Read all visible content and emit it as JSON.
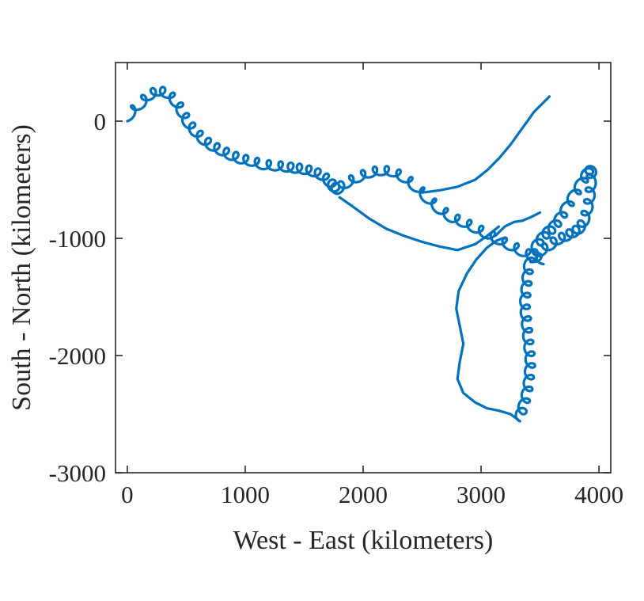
{
  "chart_data": {
    "type": "line",
    "xlabel": "West - East (kilometers)",
    "ylabel": "South - North (kilometers)",
    "xlim": [
      -100,
      4100
    ],
    "ylim": [
      -3000,
      500
    ],
    "xticks": [
      0,
      1000,
      2000,
      3000,
      4000
    ],
    "yticks": [
      0,
      -1000,
      -2000,
      -3000
    ],
    "xtick_labels": [
      "0",
      "1000",
      "2000",
      "3000",
      "4000"
    ],
    "ytick_labels": [
      "0",
      "-1000",
      "-2000",
      "-3000"
    ],
    "grid": false,
    "line_color": "#0072BD",
    "axis_color": "#262626",
    "series": [
      {
        "x": [
          0,
          100,
          180,
          260,
          340,
          420,
          470,
          520,
          580,
          650,
          720,
          800,
          880,
          960,
          1050,
          1150,
          1250,
          1350,
          1420,
          1500,
          1580,
          1650,
          1720,
          1750,
          1780,
          1850,
          1950,
          2050,
          2150,
          2250,
          2350,
          2450,
          2550,
          2650,
          2750,
          2850,
          2950,
          3050,
          3150,
          3250,
          3350,
          3450,
          3530
        ],
        "y": [
          0,
          100,
          180,
          220,
          200,
          120,
          30,
          -60,
          -130,
          -200,
          -250,
          -290,
          -330,
          -360,
          -380,
          -410,
          -420,
          -430,
          -440,
          -450,
          -470,
          -500,
          -560,
          -600,
          -620,
          -570,
          -520,
          -480,
          -460,
          -470,
          -520,
          -600,
          -700,
          -790,
          -860,
          -900,
          -950,
          -1000,
          -1050,
          -1100,
          -1150,
          -1200,
          -1220
        ],
        "loops": true
      },
      {
        "x": [
          1800,
          1900,
          2050,
          2200,
          2350,
          2500,
          2650,
          2800,
          2950,
          3050,
          3150
        ],
        "y": [
          -650,
          -720,
          -830,
          -920,
          -980,
          -1030,
          -1070,
          -1100,
          -1050,
          -980,
          -900
        ],
        "loops": false
      },
      {
        "x": [
          2500,
          2650,
          2800,
          2950,
          3050,
          3150,
          3250,
          3350,
          3450,
          3530,
          3580
        ],
        "y": [
          -610,
          -590,
          -560,
          -500,
          -420,
          -320,
          -200,
          -60,
          80,
          160,
          210
        ],
        "loops": false
      },
      {
        "x": [
          3120,
          3200,
          3280,
          3350,
          3420,
          3500
        ],
        "y": [
          -980,
          -900,
          -860,
          -850,
          -820,
          -780
        ],
        "loops": false
      },
      {
        "x": [
          3420,
          3400,
          3390,
          3380,
          3370,
          3380,
          3390,
          3400,
          3410,
          3420,
          3410,
          3400,
          3380,
          3350,
          3330
        ],
        "y": [
          -1200,
          -1300,
          -1400,
          -1500,
          -1600,
          -1700,
          -1800,
          -1900,
          -2000,
          -2100,
          -2200,
          -2300,
          -2400,
          -2500,
          -2560
        ],
        "loops": true
      },
      {
        "x": [
          3330,
          3250,
          3150,
          3050,
          2950,
          2850,
          2800,
          2820,
          2850,
          2820,
          2790,
          2810,
          2880,
          2960,
          3050,
          3130,
          3180,
          3200
        ],
        "y": [
          -2560,
          -2500,
          -2470,
          -2450,
          -2400,
          -2320,
          -2200,
          -2050,
          -1900,
          -1750,
          -1600,
          -1450,
          -1300,
          -1180,
          -1080,
          -1020,
          -1000,
          -1000
        ],
        "loops": false
      },
      {
        "x": [
          3420,
          3500,
          3580,
          3650,
          3720,
          3780,
          3830,
          3870,
          3900,
          3920,
          3930,
          3940,
          3920,
          3880,
          3820,
          3760,
          3700,
          3650,
          3600,
          3550,
          3500,
          3460
        ],
        "y": [
          -1200,
          -1150,
          -1100,
          -1050,
          -1020,
          -990,
          -960,
          -900,
          -800,
          -700,
          -600,
          -480,
          -450,
          -520,
          -620,
          -720,
          -820,
          -900,
          -960,
          -1000,
          -1060,
          -1120
        ],
        "loops": true
      }
    ]
  }
}
